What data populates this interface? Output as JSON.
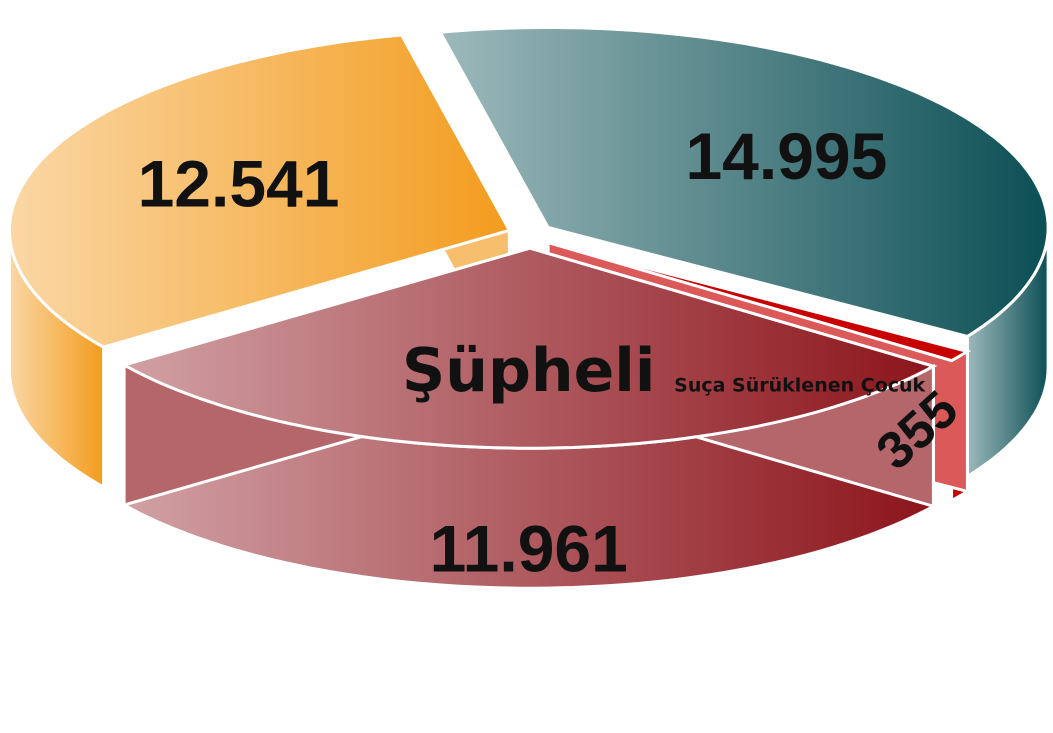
{
  "chart_data": {
    "type": "pie",
    "categories": [
      null,
      null,
      "Şüpheli",
      "Suça Sürüklenen Çocuk"
    ],
    "values": [
      14995,
      12541,
      11961,
      355
    ],
    "value_labels": [
      "14.995",
      "12.541",
      "11.961",
      "355"
    ],
    "colors": [
      "#0b4f55",
      "#f39c1e",
      "#8c141b",
      "#c80000"
    ]
  }
}
